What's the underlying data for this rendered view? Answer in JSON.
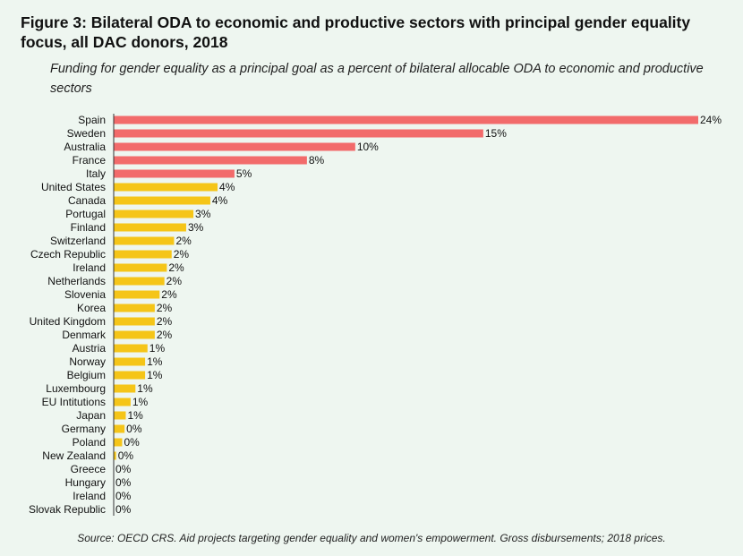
{
  "title": "Figure 3: Bilateral ODA to economic and productive sectors with principal gender equality focus, all DAC donors, 2018",
  "subtitle": "Funding for gender equality as a principal goal as a percent of bilateral allocable ODA to economic and productive sectors",
  "source": "Source: OECD CRS. Aid projects targeting gender equality and women's empowerment. Gross disbursements; 2018 prices.",
  "colors": {
    "highlight": "#f26b6b",
    "standard": "#f5c518",
    "axis": "#333333"
  },
  "chart_data": {
    "type": "bar",
    "orientation": "horizontal",
    "categories": [
      "Spain",
      "Sweden",
      "Australia",
      "France",
      "Italy",
      "United States",
      "Canada",
      "Portugal",
      "Finland",
      "Switzerland",
      "Czech Republic",
      "Ireland",
      "Netherlands",
      "Slovenia",
      "Korea",
      "United Kingdom",
      "Denmark",
      "Austria",
      "Norway",
      "Belgium",
      "Luxembourg",
      "EU Intitutions",
      "Japan",
      "Germany",
      "Poland",
      "New Zealand",
      "Greece",
      "Hungary",
      "Ireland",
      "Slovak Republic"
    ],
    "values": [
      24.2,
      15.3,
      10.0,
      8.0,
      5.0,
      4.3,
      4.0,
      3.3,
      3.0,
      2.5,
      2.4,
      2.2,
      2.1,
      1.9,
      1.7,
      1.7,
      1.7,
      1.4,
      1.3,
      1.3,
      0.9,
      0.7,
      0.5,
      0.45,
      0.35,
      0.1,
      0.0,
      0.0,
      0.0,
      0.0
    ],
    "labels": [
      "24%",
      "15%",
      "10%",
      "8%",
      "5%",
      "4%",
      "4%",
      "3%",
      "3%",
      "2%",
      "2%",
      "2%",
      "2%",
      "2%",
      "2%",
      "2%",
      "2%",
      "1%",
      "1%",
      "1%",
      "1%",
      "1%",
      "1%",
      "0%",
      "0%",
      "0%",
      "0%",
      "0%",
      "0%",
      "0%"
    ],
    "highlight": [
      true,
      true,
      true,
      true,
      true,
      false,
      false,
      false,
      false,
      false,
      false,
      false,
      false,
      false,
      false,
      false,
      false,
      false,
      false,
      false,
      false,
      false,
      false,
      false,
      false,
      false,
      false,
      false,
      false,
      false
    ],
    "xlim": [
      0,
      24.2
    ],
    "grid": false,
    "legend": "none"
  }
}
